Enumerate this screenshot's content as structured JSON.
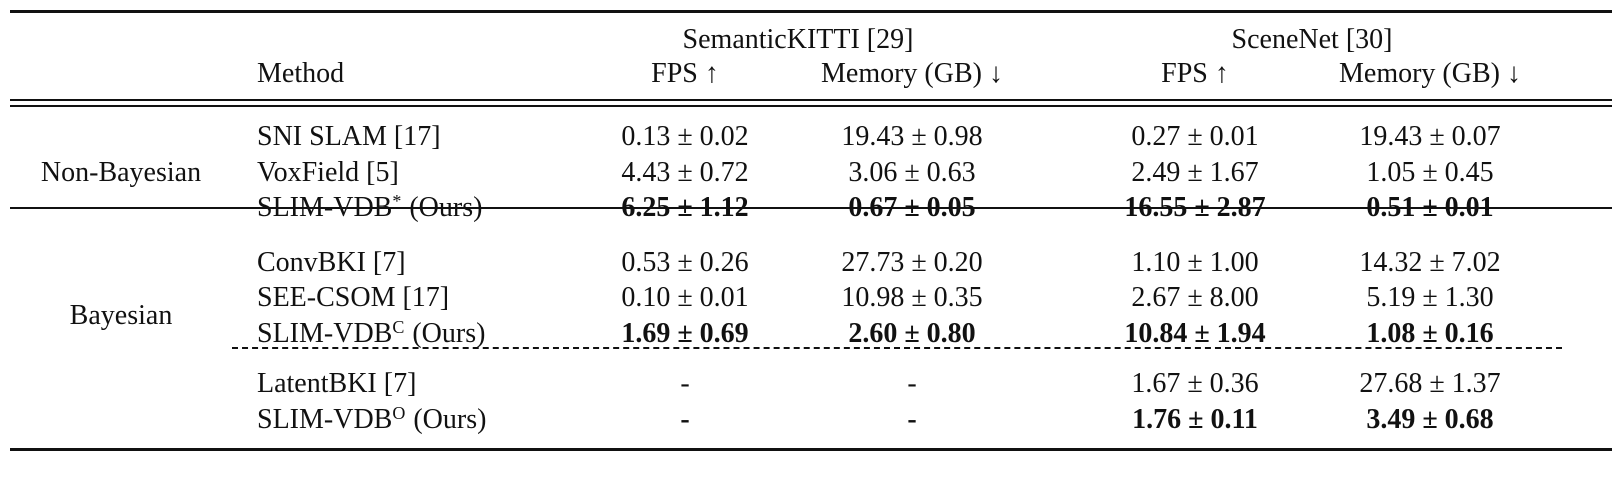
{
  "table": {
    "group_headers": [
      "SemanticKITTI [29]",
      "SceneNet [30]"
    ],
    "column_headers": [
      "Method",
      "FPS ↑",
      "Memory (GB) ↓",
      "FPS ↑",
      "Memory (GB) ↓"
    ],
    "groups": [
      {
        "label": "Non-Bayesian",
        "rows": [
          {
            "method": {
              "name": "SNI SLAM [17]"
            },
            "cells": [
              "0.13 ± 0.02",
              "19.43 ± 0.98",
              "0.27 ± 0.01",
              "19.43 ± 0.07"
            ],
            "bold": false
          },
          {
            "method": {
              "name": "VoxField [5]"
            },
            "cells": [
              "4.43 ± 0.72",
              "3.06 ± 0.63",
              "2.49 ± 1.67",
              "1.05 ± 0.45"
            ],
            "bold": false
          },
          {
            "method": {
              "name": "SLIM-VDB",
              "sup": "*",
              "note": "(Ours)"
            },
            "cells": [
              "6.25 ± 1.12",
              "0.67 ± 0.05",
              "16.55 ± 2.87",
              "0.51 ± 0.01"
            ],
            "bold": true
          }
        ]
      },
      {
        "label": "Bayesian",
        "rows": [
          {
            "method": {
              "name": "ConvBKI [7]"
            },
            "cells": [
              "0.53 ± 0.26",
              "27.73 ± 0.20",
              "1.10 ± 1.00",
              "14.32 ± 7.02"
            ],
            "bold": false
          },
          {
            "method": {
              "name": "SEE-CSOM [17]"
            },
            "cells": [
              "0.10 ± 0.01",
              "10.98 ± 0.35",
              "2.67 ± 8.00",
              "5.19 ± 1.30"
            ],
            "bold": false
          },
          {
            "method": {
              "name": "SLIM-VDB",
              "sup": "C",
              "note": "(Ours)"
            },
            "cells": [
              "1.69 ± 0.69",
              "2.60 ± 0.80",
              "10.84 ± 1.94",
              "1.08 ± 0.16"
            ],
            "bold": true
          },
          {
            "method": {
              "name": "LatentBKI [7]"
            },
            "cells": [
              "-",
              "-",
              "1.67 ± 0.36",
              "27.68 ± 1.37"
            ],
            "bold": false,
            "dashed_rule_before": true
          },
          {
            "method": {
              "name": "SLIM-VDB",
              "sup": "O",
              "note": "(Ours)"
            },
            "cells": [
              "-",
              "-",
              "1.76 ± 0.11",
              "3.49 ± 0.68"
            ],
            "bold": true
          }
        ]
      }
    ]
  }
}
